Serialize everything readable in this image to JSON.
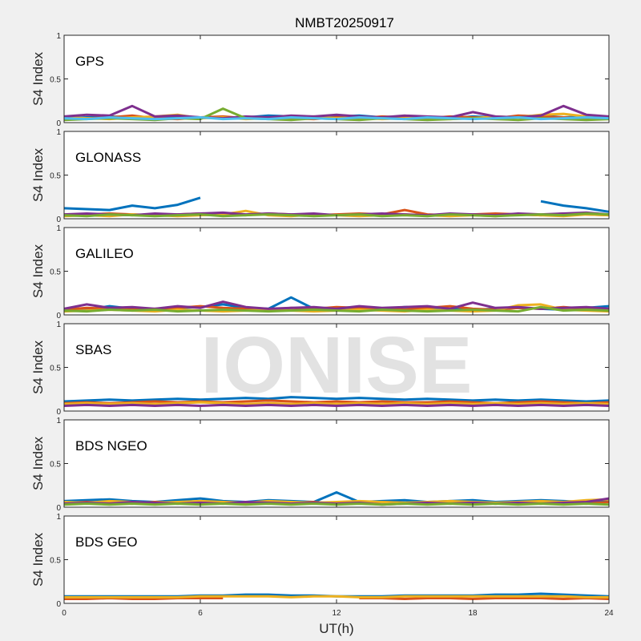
{
  "chart_data": {
    "type": "line",
    "title": "NMBT20250917",
    "xlabel": "UT(h)",
    "xlim": [
      0,
      24
    ],
    "xticks": [
      "0",
      "6",
      "12",
      "18",
      "24"
    ],
    "watermark": "IONISE",
    "colors": [
      "#0072BD",
      "#D95319",
      "#EDB120",
      "#7E2F8E",
      "#77AC30",
      "#4DBEEE",
      "#A2142F"
    ],
    "grid": false,
    "x": [
      0,
      1,
      2,
      3,
      4,
      5,
      6,
      7,
      8,
      9,
      10,
      11,
      12,
      13,
      14,
      15,
      16,
      17,
      18,
      19,
      20,
      21,
      22,
      23,
      24
    ],
    "panels": [
      {
        "label": "GPS",
        "ylabel": "S4 Index",
        "ylim": [
          0,
          1
        ],
        "yticks": [
          "0",
          "0.5",
          "1"
        ],
        "series": [
          [
            0.05,
            0.06,
            0.07,
            0.06,
            0.05,
            0.07,
            0.06,
            0.05,
            0.06,
            0.08,
            0.07,
            0.06,
            0.07,
            0.08,
            0.06,
            0.07,
            0.06,
            0.05,
            0.07,
            0.06,
            0.07,
            0.08,
            0.06,
            0.07,
            0.05
          ],
          [
            0.04,
            0.05,
            0.06,
            0.08,
            0.05,
            0.04,
            0.06,
            0.07,
            0.05,
            0.06,
            0.05,
            0.04,
            0.06,
            0.05,
            0.07,
            0.06,
            0.05,
            0.07,
            0.06,
            0.05,
            0.08,
            0.07,
            0.06,
            0.05,
            0.06
          ],
          [
            0.06,
            0.05,
            0.04,
            0.06,
            0.07,
            0.09,
            0.05,
            0.06,
            0.04,
            0.05,
            0.06,
            0.07,
            0.05,
            0.06,
            0.04,
            0.05,
            0.06,
            0.04,
            0.05,
            0.07,
            0.06,
            0.09,
            0.1,
            0.07,
            0.06
          ],
          [
            0.07,
            0.09,
            0.08,
            0.19,
            0.07,
            0.08,
            0.06,
            0.05,
            0.07,
            0.06,
            0.08,
            0.07,
            0.09,
            0.07,
            0.06,
            0.08,
            0.07,
            0.06,
            0.12,
            0.07,
            0.06,
            0.08,
            0.19,
            0.09,
            0.07
          ],
          [
            0.03,
            0.04,
            0.05,
            0.04,
            0.03,
            0.05,
            0.04,
            0.16,
            0.05,
            0.04,
            0.03,
            0.05,
            0.04,
            0.03,
            0.05,
            0.04,
            0.03,
            0.04,
            0.05,
            0.04,
            0.03,
            0.05,
            0.04,
            0.03,
            0.04
          ],
          [
            0.05,
            0.04,
            0.06,
            0.05,
            0.04,
            0.05,
            0.06,
            0.04,
            0.05,
            0.04,
            0.06,
            0.05,
            0.04,
            0.06,
            0.05,
            0.04,
            0.06,
            0.05,
            0.04,
            0.05,
            0.06,
            0.04,
            0.05,
            0.06,
            0.05
          ]
        ]
      },
      {
        "label": "GLONASS",
        "ylabel": "S4 Index",
        "ylim": [
          0,
          1
        ],
        "yticks": [
          "0",
          "0.5",
          "1"
        ],
        "series": [
          [
            0.12,
            0.11,
            0.1,
            0.15,
            0.12,
            0.16,
            0.24,
            null,
            null,
            null,
            null,
            null,
            null,
            null,
            null,
            null,
            null,
            null,
            null,
            null,
            null,
            0.2,
            0.15,
            0.12,
            0.08
          ],
          [
            0.04,
            0.05,
            0.06,
            0.05,
            0.04,
            0.05,
            0.06,
            0.05,
            0.04,
            0.06,
            0.05,
            0.04,
            0.05,
            0.06,
            0.05,
            0.1,
            0.05,
            0.04,
            0.05,
            0.06,
            0.05,
            0.04,
            0.06,
            0.05,
            0.04
          ],
          [
            0.03,
            0.04,
            0.03,
            0.05,
            0.04,
            0.03,
            0.04,
            0.05,
            0.09,
            0.04,
            0.03,
            0.05,
            0.04,
            0.03,
            0.04,
            0.05,
            0.04,
            0.03,
            0.04,
            0.03,
            0.05,
            0.04,
            0.03,
            0.05,
            0.04
          ],
          [
            0.05,
            0.06,
            0.05,
            0.04,
            0.06,
            0.05,
            0.06,
            0.07,
            0.05,
            0.06,
            0.05,
            0.06,
            0.04,
            0.05,
            0.06,
            0.05,
            0.04,
            0.06,
            0.05,
            0.04,
            0.06,
            0.05,
            0.06,
            0.07,
            0.05
          ],
          [
            0.04,
            0.03,
            0.05,
            0.04,
            0.03,
            0.04,
            0.05,
            0.03,
            0.04,
            0.05,
            0.04,
            0.03,
            0.04,
            0.05,
            0.03,
            0.04,
            0.03,
            0.05,
            0.04,
            0.03,
            0.04,
            0.05,
            0.04,
            0.06,
            0.05
          ]
        ]
      },
      {
        "label": "GALILEO",
        "ylabel": "S4 Index",
        "ylim": [
          0,
          1
        ],
        "yticks": [
          "0",
          "0.5",
          "1"
        ],
        "series": [
          [
            0.05,
            0.06,
            0.1,
            0.07,
            0.06,
            0.08,
            0.09,
            0.12,
            0.08,
            0.07,
            0.2,
            0.07,
            0.06,
            0.08,
            0.07,
            0.09,
            0.08,
            0.07,
            0.06,
            0.07,
            0.08,
            0.07,
            0.06,
            0.08,
            0.1
          ],
          [
            0.06,
            0.08,
            0.07,
            0.06,
            0.07,
            0.08,
            0.1,
            0.08,
            0.07,
            0.06,
            0.08,
            0.07,
            0.09,
            0.08,
            0.07,
            0.06,
            0.08,
            0.1,
            0.07,
            0.06,
            0.08,
            0.07,
            0.09,
            0.07,
            0.06
          ],
          [
            0.04,
            0.05,
            0.06,
            0.05,
            0.04,
            0.06,
            0.05,
            0.04,
            0.05,
            0.06,
            0.05,
            0.04,
            0.05,
            0.06,
            0.05,
            0.04,
            0.06,
            0.05,
            0.04,
            0.05,
            0.11,
            0.12,
            0.06,
            0.05,
            0.04
          ],
          [
            0.07,
            0.12,
            0.08,
            0.09,
            0.07,
            0.1,
            0.08,
            0.15,
            0.09,
            0.07,
            0.08,
            0.09,
            0.07,
            0.1,
            0.08,
            0.09,
            0.1,
            0.07,
            0.14,
            0.08,
            0.09,
            0.07,
            0.08,
            0.09,
            0.07
          ],
          [
            0.05,
            0.04,
            0.06,
            0.05,
            0.06,
            0.04,
            0.05,
            0.06,
            0.05,
            0.04,
            0.05,
            0.06,
            0.05,
            0.04,
            0.06,
            0.05,
            0.04,
            0.05,
            0.06,
            0.05,
            0.04,
            0.09,
            0.05,
            0.06,
            0.05
          ]
        ]
      },
      {
        "label": "SBAS",
        "ylabel": "S4 Index",
        "ylim": [
          0,
          1
        ],
        "yticks": [
          "0",
          "0.5",
          "1"
        ],
        "series": [
          [
            0.11,
            0.12,
            0.13,
            0.12,
            0.13,
            0.14,
            0.13,
            0.14,
            0.15,
            0.14,
            0.16,
            0.15,
            0.14,
            0.15,
            0.14,
            0.13,
            0.14,
            0.13,
            0.12,
            0.13,
            0.12,
            0.13,
            0.12,
            0.11,
            0.12
          ],
          [
            0.09,
            0.1,
            0.09,
            0.1,
            0.11,
            0.1,
            0.11,
            0.1,
            0.11,
            0.12,
            0.11,
            0.1,
            0.11,
            0.1,
            0.11,
            0.1,
            0.1,
            0.11,
            0.1,
            0.09,
            0.1,
            0.11,
            0.1,
            0.09,
            0.1
          ],
          [
            0.08,
            0.09,
            0.08,
            0.09,
            0.08,
            0.09,
            0.1,
            0.09,
            0.08,
            0.09,
            0.08,
            0.09,
            0.08,
            0.09,
            0.08,
            0.09,
            0.08,
            0.09,
            0.08,
            0.09,
            0.08,
            0.09,
            0.08,
            0.09,
            0.08
          ],
          [
            0.06,
            0.07,
            0.06,
            0.07,
            0.06,
            0.07,
            0.06,
            0.07,
            0.06,
            0.07,
            0.06,
            0.07,
            0.06,
            0.07,
            0.06,
            0.07,
            0.06,
            0.07,
            0.06,
            0.07,
            0.06,
            0.07,
            0.06,
            0.07,
            0.06
          ]
        ]
      },
      {
        "label": "BDS NGEO",
        "ylabel": "S4 Index",
        "ylim": [
          0,
          1
        ],
        "yticks": [
          "0",
          "0.5",
          "1"
        ],
        "series": [
          [
            0.07,
            0.08,
            0.09,
            0.07,
            0.06,
            0.08,
            0.1,
            0.07,
            0.06,
            0.08,
            0.07,
            0.06,
            0.17,
            0.06,
            0.07,
            0.08,
            0.06,
            0.07,
            0.08,
            0.06,
            0.07,
            0.08,
            0.07,
            0.06,
            0.08
          ],
          [
            0.05,
            0.06,
            0.05,
            0.04,
            0.06,
            0.05,
            0.04,
            0.06,
            0.05,
            0.04,
            0.05,
            0.06,
            0.04,
            0.05,
            0.06,
            0.05,
            0.04,
            0.06,
            0.05,
            0.04,
            0.05,
            0.06,
            0.05,
            0.04,
            0.06
          ],
          [
            0.06,
            0.05,
            0.07,
            0.06,
            0.05,
            0.06,
            0.07,
            0.06,
            0.05,
            0.07,
            0.06,
            0.05,
            0.06,
            0.07,
            0.06,
            0.05,
            0.06,
            0.07,
            0.06,
            0.05,
            0.06,
            0.07,
            0.06,
            0.08,
            0.09
          ],
          [
            0.04,
            0.05,
            0.04,
            0.06,
            0.05,
            0.04,
            0.05,
            0.04,
            0.06,
            0.05,
            0.04,
            0.05,
            0.04,
            0.05,
            0.03,
            0.04,
            0.05,
            0.04,
            0.05,
            0.04,
            0.05,
            0.04,
            0.05,
            0.06,
            0.1
          ],
          [
            0.03,
            0.04,
            0.03,
            0.04,
            0.03,
            0.04,
            0.03,
            0.04,
            0.03,
            0.04,
            0.03,
            0.04,
            0.03,
            0.04,
            0.03,
            0.04,
            0.03,
            0.04,
            0.03,
            0.04,
            0.03,
            0.04,
            0.03,
            0.04,
            0.03
          ]
        ]
      },
      {
        "label": "BDS GEO",
        "ylabel": "S4 Index",
        "ylim": [
          0,
          1
        ],
        "yticks": [
          "0",
          "0.5",
          "1"
        ],
        "series": [
          [
            0.08,
            0.08,
            0.08,
            0.08,
            0.08,
            0.08,
            0.09,
            0.09,
            0.1,
            0.1,
            0.09,
            0.09,
            0.08,
            0.08,
            0.08,
            0.09,
            0.09,
            0.09,
            0.09,
            0.1,
            0.1,
            0.11,
            0.1,
            0.09,
            0.08
          ],
          [
            0.05,
            0.05,
            0.06,
            0.05,
            0.05,
            0.06,
            0.06,
            0.06,
            null,
            null,
            null,
            null,
            null,
            0.06,
            0.06,
            0.05,
            0.06,
            0.06,
            0.05,
            0.06,
            0.06,
            0.06,
            0.05,
            0.06,
            0.05
          ],
          [
            0.07,
            0.07,
            0.07,
            0.07,
            0.07,
            0.07,
            0.08,
            0.08,
            0.08,
            0.08,
            0.07,
            0.08,
            0.08,
            0.07,
            0.07,
            0.08,
            0.08,
            0.08,
            0.08,
            0.08,
            0.08,
            0.08,
            0.08,
            0.07,
            0.07
          ]
        ]
      }
    ]
  }
}
